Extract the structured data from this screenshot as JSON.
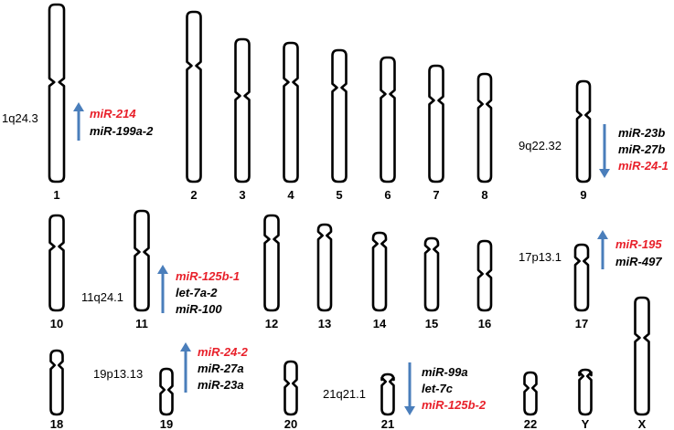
{
  "colors": {
    "outline": "#000000",
    "arrow": "#4a7ebb",
    "highlight": "#e8202a",
    "text": "#000000"
  },
  "chromosomes": [
    {
      "label": "1"
    },
    {
      "label": "2"
    },
    {
      "label": "3"
    },
    {
      "label": "4"
    },
    {
      "label": "5"
    },
    {
      "label": "6"
    },
    {
      "label": "7"
    },
    {
      "label": "8"
    },
    {
      "label": "9"
    },
    {
      "label": "10"
    },
    {
      "label": "11"
    },
    {
      "label": "12"
    },
    {
      "label": "13"
    },
    {
      "label": "14"
    },
    {
      "label": "15"
    },
    {
      "label": "16"
    },
    {
      "label": "17"
    },
    {
      "label": "18"
    },
    {
      "label": "19"
    },
    {
      "label": "20"
    },
    {
      "label": "21"
    },
    {
      "label": "22"
    },
    {
      "label": "Y"
    },
    {
      "label": "X"
    }
  ],
  "annotations": [
    {
      "chromosome": "1",
      "band": "1q24.3",
      "direction": "up",
      "mirnas": [
        {
          "name": "miR-214",
          "highlight": true
        },
        {
          "name": "miR-199a-2",
          "highlight": false
        }
      ]
    },
    {
      "chromosome": "9",
      "band": "9q22.32",
      "direction": "down",
      "mirnas": [
        {
          "name": "miR-23b",
          "highlight": false
        },
        {
          "name": "miR-27b",
          "highlight": false
        },
        {
          "name": "miR-24-1",
          "highlight": true
        }
      ]
    },
    {
      "chromosome": "11",
      "band": "11q24.1",
      "direction": "up",
      "mirnas": [
        {
          "name": "miR-125b-1",
          "highlight": true
        },
        {
          "name": "let-7a-2",
          "highlight": false
        },
        {
          "name": "miR-100",
          "highlight": false
        }
      ]
    },
    {
      "chromosome": "17",
      "band": "17p13.1",
      "direction": "up",
      "mirnas": [
        {
          "name": "miR-195",
          "highlight": true
        },
        {
          "name": "miR-497",
          "highlight": false
        }
      ]
    },
    {
      "chromosome": "19",
      "band": "19p13.13",
      "direction": "up",
      "mirnas": [
        {
          "name": "miR-24-2",
          "highlight": true
        },
        {
          "name": "miR-27a",
          "highlight": false
        },
        {
          "name": "miR-23a",
          "highlight": false
        }
      ]
    },
    {
      "chromosome": "21",
      "band": "21q21.1",
      "direction": "down",
      "mirnas": [
        {
          "name": "miR-99a",
          "highlight": false
        },
        {
          "name": "let-7c",
          "highlight": false
        },
        {
          "name": "miR-125b-2",
          "highlight": true
        }
      ]
    }
  ]
}
